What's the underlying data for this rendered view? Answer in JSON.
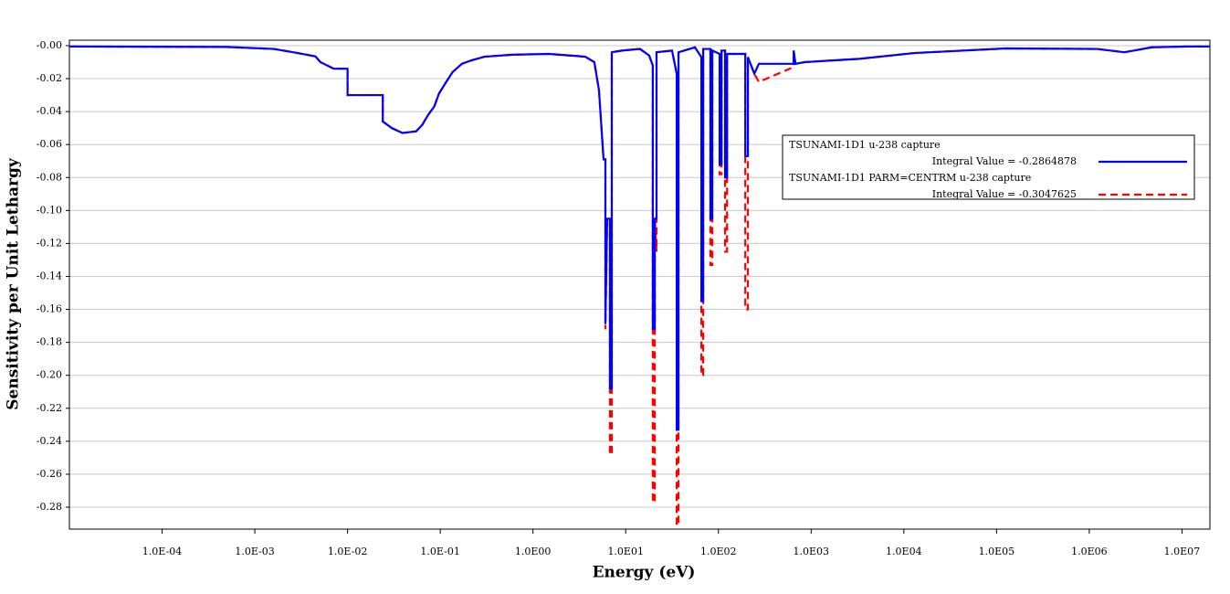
{
  "chart_data": {
    "type": "line",
    "x_label": "Energy (eV)",
    "y_label": "Sensitivity per Unit Lethargy",
    "xscale": "log",
    "xlim": [
      1e-05,
      20000000
    ],
    "ylim": [
      -0.2933,
      0.0033
    ],
    "xticks": [
      {
        "value": 0.0001,
        "label": "1.0E-04"
      },
      {
        "value": 0.001,
        "label": "1.0E-03"
      },
      {
        "value": 0.01,
        "label": "1.0E-02"
      },
      {
        "value": 0.1,
        "label": "1.0E-01"
      },
      {
        "value": 1,
        "label": "1.0E00"
      },
      {
        "value": 10,
        "label": "1.0E01"
      },
      {
        "value": 100,
        "label": "1.0E02"
      },
      {
        "value": 1000,
        "label": "1.0E03"
      },
      {
        "value": 10000,
        "label": "1.0E04"
      },
      {
        "value": 100000,
        "label": "1.0E05"
      },
      {
        "value": 1000000,
        "label": "1.0E06"
      },
      {
        "value": 10000000,
        "label": "1.0E07"
      }
    ],
    "yticks": [
      {
        "value": 0,
        "label": "-0.00"
      },
      -0.02,
      -0.04,
      -0.06,
      -0.08,
      {
        "value": -0.1,
        "label": "-0.10"
      },
      -0.12,
      -0.14,
      -0.16,
      -0.18,
      {
        "value": -0.2,
        "label": "-0.20"
      },
      -0.22,
      -0.24,
      -0.26,
      -0.28
    ],
    "grid": true,
    "legend": "upper right",
    "x": [
      1e-05,
      0.0005,
      0.0016,
      0.0026,
      0.0045,
      0.0051,
      0.0071,
      0.01,
      0.01,
      0.024,
      0.024,
      0.03,
      0.039,
      0.055,
      0.064,
      0.074,
      0.086,
      0.097,
      0.116,
      0.136,
      0.171,
      0.215,
      0.3,
      0.6,
      1.48,
      3.66,
      4.59,
      5.15,
      5.77,
      6.04,
      6.04,
      6.31,
      6.76,
      6.76,
      7.08,
      7.08,
      9.08,
      14.3,
      17.9,
      19.6,
      19.6,
      20.6,
      20.6,
      21.5,
      21.5,
      31.6,
      35.5,
      35.5,
      37.1,
      37.1,
      55.8,
      65.5,
      65.5,
      68.5,
      68.5,
      82,
      82,
      85.9,
      85.9,
      103,
      103,
      108,
      108,
      118,
      118,
      124,
      124,
      195,
      195,
      208,
      208,
      244,
      273,
      648,
      648,
      678,
      851,
      3320,
      12900,
      125000,
      1210000,
      2400000,
      4730000,
      11700000,
      20000000
    ],
    "series": [
      {
        "name": "TSUNAMI-1D1 u-238 capture",
        "integral_text": "Integral Value = -0.2864878",
        "color": "#0000ff",
        "linestyle": "solid",
        "values": [
          -0.0005,
          -0.0008,
          -0.002,
          -0.004,
          -0.0065,
          -0.01,
          -0.014,
          -0.014,
          -0.03,
          -0.03,
          -0.046,
          -0.05,
          -0.053,
          -0.052,
          -0.048,
          -0.042,
          -0.037,
          -0.029,
          -0.022,
          -0.016,
          -0.011,
          -0.009,
          -0.0067,
          -0.0055,
          -0.005,
          -0.0067,
          -0.01,
          -0.027,
          -0.069,
          -0.069,
          -0.169,
          -0.105,
          -0.105,
          -0.208,
          -0.208,
          -0.004,
          -0.003,
          -0.002,
          -0.006,
          -0.012,
          -0.172,
          -0.172,
          -0.105,
          -0.105,
          -0.004,
          -0.003,
          -0.017,
          -0.233,
          -0.233,
          -0.004,
          -0.001,
          -0.007,
          -0.155,
          -0.155,
          -0.002,
          -0.002,
          -0.105,
          -0.105,
          -0.003,
          -0.005,
          -0.072,
          -0.072,
          -0.003,
          -0.003,
          -0.08,
          -0.08,
          -0.005,
          -0.005,
          -0.067,
          -0.067,
          -0.007,
          -0.017,
          -0.011,
          -0.011,
          -0.003,
          -0.011,
          -0.01,
          -0.008,
          -0.0045,
          -0.0017,
          -0.002,
          -0.004,
          -0.001,
          -0.0005,
          -0.0005
        ]
      },
      {
        "name": "TSUNAMI-1D1 PARM=CENTRM u-238 capture",
        "integral_text": "Integral Value = -0.3047625",
        "color": "#ff0000",
        "linestyle": "dashed",
        "values": [
          -0.0005,
          -0.0008,
          -0.002,
          -0.004,
          -0.0065,
          -0.01,
          -0.014,
          -0.014,
          -0.03,
          -0.03,
          -0.046,
          -0.05,
          -0.053,
          -0.052,
          -0.048,
          -0.042,
          -0.037,
          -0.029,
          -0.022,
          -0.016,
          -0.011,
          -0.009,
          -0.0067,
          -0.0055,
          -0.005,
          -0.0067,
          -0.01,
          -0.027,
          -0.069,
          -0.069,
          -0.172,
          -0.105,
          -0.105,
          -0.248,
          -0.248,
          -0.004,
          -0.003,
          -0.002,
          -0.006,
          -0.012,
          -0.277,
          -0.277,
          -0.105,
          -0.125,
          -0.004,
          -0.003,
          -0.017,
          -0.291,
          -0.291,
          -0.004,
          -0.001,
          -0.007,
          -0.2,
          -0.2,
          -0.002,
          -0.002,
          -0.133,
          -0.133,
          -0.003,
          -0.005,
          -0.078,
          -0.078,
          -0.003,
          -0.003,
          -0.125,
          -0.125,
          -0.005,
          -0.005,
          -0.16,
          -0.16,
          -0.007,
          -0.017,
          -0.022,
          -0.013,
          -0.003,
          -0.011,
          -0.01,
          -0.008,
          -0.0045,
          -0.0017,
          -0.002,
          -0.004,
          -0.001,
          -0.0005,
          -0.0005
        ]
      }
    ]
  }
}
